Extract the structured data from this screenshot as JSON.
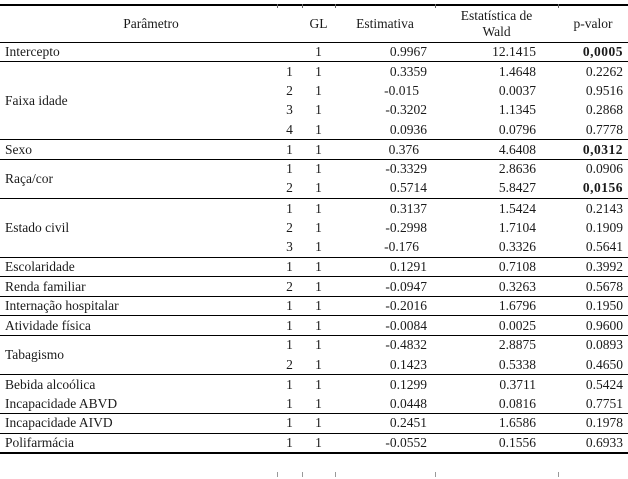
{
  "table": {
    "header": {
      "parametro": "Parâmetro",
      "gl": "GL",
      "estimativa": "Estimativa",
      "wald_line1": "Estatística de",
      "wald_line2": "Wald",
      "p_valor": "p-valor"
    },
    "groups": [
      {
        "label": "Intercepto",
        "top_border": true,
        "rows": [
          {
            "level": "",
            "gl": "1",
            "estimate": "0.9967",
            "wald": "12.1415",
            "p": "0,0005",
            "p_bold": true
          }
        ]
      },
      {
        "label": "Faixa idade",
        "top_border": true,
        "rows": [
          {
            "level": "1",
            "gl": "1",
            "estimate": "0.3359",
            "wald": "1.4648",
            "p": "0.2262"
          },
          {
            "level": "2",
            "gl": "1",
            "estimate": "-0.015",
            "wald": "0.0037",
            "p": "0.9516"
          },
          {
            "level": "3",
            "gl": "1",
            "estimate": "-0.3202",
            "wald": "1.1345",
            "p": "0.2868"
          },
          {
            "level": "4",
            "gl": "1",
            "estimate": "0.0936",
            "wald": "0.0796",
            "p": "0.7778"
          }
        ]
      },
      {
        "label": "Sexo",
        "top_border": true,
        "rows": [
          {
            "level": "1",
            "gl": "1",
            "estimate": "0.376",
            "wald": "4.6408",
            "p": "0,0312",
            "p_bold": true
          }
        ]
      },
      {
        "label": "Raça/cor",
        "top_border": true,
        "rows": [
          {
            "level": "1",
            "gl": "1",
            "estimate": "-0.3329",
            "wald": "2.8636",
            "p": "0.0906"
          },
          {
            "level": "2",
            "gl": "1",
            "estimate": "0.5714",
            "wald": "5.8427",
            "p": "0,0156",
            "p_bold": true
          }
        ]
      },
      {
        "label": "Estado civil",
        "top_border": true,
        "rows": [
          {
            "level": "1",
            "gl": "1",
            "estimate": "0.3137",
            "wald": "1.5424",
            "p": "0.2143"
          },
          {
            "level": "2",
            "gl": "1",
            "estimate": "-0.2998",
            "wald": "1.7104",
            "p": "0.1909"
          },
          {
            "level": "3",
            "gl": "1",
            "estimate": "-0.176",
            "wald": "0.3326",
            "p": "0.5641"
          }
        ]
      },
      {
        "label": "Escolaridade",
        "top_border": true,
        "rows": [
          {
            "level": "1",
            "gl": "1",
            "estimate": "0.1291",
            "wald": "0.7108",
            "p": "0.3992"
          }
        ]
      },
      {
        "label": "Renda familiar",
        "top_border": true,
        "rows": [
          {
            "level": "2",
            "gl": "1",
            "estimate": "-0.0947",
            "wald": "0.3263",
            "p": "0.5678"
          }
        ]
      },
      {
        "label": "Internação hospitalar",
        "top_border": true,
        "rows": [
          {
            "level": "1",
            "gl": "1",
            "estimate": "-0.2016",
            "wald": "1.6796",
            "p": "0.1950"
          }
        ]
      },
      {
        "label": "Atividade física",
        "top_border": true,
        "rows": [
          {
            "level": "1",
            "gl": "1",
            "estimate": "-0.0084",
            "wald": "0.0025",
            "p": "0.9600"
          }
        ]
      },
      {
        "label": "Tabagismo",
        "top_border": true,
        "rows": [
          {
            "level": "1",
            "gl": "1",
            "estimate": "-0.4832",
            "wald": "2.8875",
            "p": "0.0893"
          },
          {
            "level": "2",
            "gl": "1",
            "estimate": "0.1423",
            "wald": "0.5338",
            "p": "0.4650"
          }
        ]
      },
      {
        "label": "Bebida alcoólica",
        "top_border": true,
        "rows": [
          {
            "level": "1",
            "gl": "1",
            "estimate": "0.1299",
            "wald": "0.3711",
            "p": "0.5424"
          }
        ]
      },
      {
        "label": "Incapacidade ABVD",
        "top_border": false,
        "rows": [
          {
            "level": "1",
            "gl": "1",
            "estimate": "0.0448",
            "wald": "0.0816",
            "p": "0.7751"
          }
        ]
      },
      {
        "label": "Incapacidade AIVD",
        "top_border": true,
        "rows": [
          {
            "level": "1",
            "gl": "1",
            "estimate": "0.2451",
            "wald": "1.6586",
            "p": "0.1978"
          }
        ]
      },
      {
        "label": "Polifarmácia",
        "top_border": true,
        "rows": [
          {
            "level": "1",
            "gl": "1",
            "estimate": "-0.0552",
            "wald": "0.1556",
            "p": "0.6933"
          }
        ]
      }
    ]
  }
}
